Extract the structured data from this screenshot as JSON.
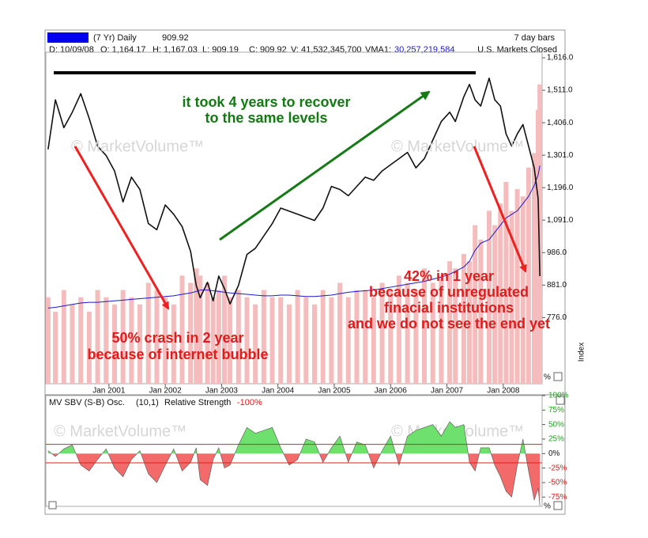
{
  "header": {
    "period": "(7 Yr) Daily",
    "last": "909.92",
    "bar_interval": "7 day bars",
    "date": "D: 10/09/08",
    "open": "O: 1,164.17",
    "high": "H: 1,167.03",
    "low": "L: 909.19",
    "close": "C: 909.92",
    "volume": "V: 41,532,345,700",
    "vma_label": "VMA1:",
    "vma_value": "30,257,219,584",
    "status": "U.S. Markets Closed"
  },
  "watermark": "© MarketVolume™",
  "percent_label": "%",
  "chart_data": [
    {
      "type": "line",
      "y_label": "Index",
      "annotations": [
        [
          "it took 4 years to recover",
          "to the same levels"
        ],
        [
          "50% crash in 2 year",
          "because of internet bubble"
        ],
        [
          "42% in 1 year",
          "because of unregulated",
          "finacial institutions",
          "and we do not see the end yet"
        ]
      ],
      "x": [
        1999.92,
        2000.05,
        2000.2,
        2000.35,
        2000.5,
        2000.65,
        2000.8,
        2000.95,
        2001.1,
        2001.25,
        2001.4,
        2001.55,
        2001.7,
        2001.85,
        2002.0,
        2002.15,
        2002.3,
        2002.45,
        2002.55,
        2002.62,
        2002.75,
        2002.85,
        2002.95,
        2003.05,
        2003.15,
        2003.3,
        2003.45,
        2003.6,
        2003.75,
        2003.9,
        2004.05,
        2004.2,
        2004.35,
        2004.5,
        2004.65,
        2004.8,
        2004.95,
        2005.1,
        2005.25,
        2005.4,
        2005.55,
        2005.7,
        2005.85,
        2006.0,
        2006.15,
        2006.3,
        2006.45,
        2006.6,
        2006.75,
        2006.9,
        2007.05,
        2007.15,
        2007.3,
        2007.4,
        2007.5,
        2007.6,
        2007.75,
        2007.85,
        2007.95,
        2008.05,
        2008.15,
        2008.25,
        2008.35,
        2008.45,
        2008.55,
        2008.62,
        2008.65
      ],
      "xlim": [
        1999.88,
        2008.69
      ],
      "xticks": [
        {
          "value": 2001,
          "label": "Jan 2001"
        },
        {
          "value": 2002,
          "label": "Jan 2002"
        },
        {
          "value": 2003,
          "label": "Jan 2003"
        },
        {
          "value": 2004,
          "label": "Jan 2004"
        },
        {
          "value": 2005,
          "label": "Jan 2005"
        },
        {
          "value": 2006,
          "label": "Jan 2006"
        },
        {
          "value": 2007,
          "label": "Jan 2007"
        },
        {
          "value": 2008,
          "label": "Jan 2008"
        }
      ],
      "ylim": [
        562,
        1634
      ],
      "yticks": [
        {
          "value": 1616,
          "label": "1,616.0"
        },
        {
          "value": 1511,
          "label": "1,511.0"
        },
        {
          "value": 1406,
          "label": "1,406.0"
        },
        {
          "value": 1301,
          "label": "1,301.0"
        },
        {
          "value": 1196,
          "label": "1,196.0"
        },
        {
          "value": 1091,
          "label": "1,091.0"
        },
        {
          "value": 986,
          "label": "986.0"
        },
        {
          "value": 881,
          "label": "881.0"
        },
        {
          "value": 776,
          "label": "776.0"
        }
      ],
      "y2lim": [
        0,
        46
      ],
      "grid": false,
      "series": [
        {
          "type": "bar",
          "axis": "y2",
          "color": "#f4bcbc",
          "values": [
            12,
            10,
            13,
            11,
            12,
            10,
            13,
            12,
            11,
            13,
            12,
            11,
            14,
            13,
            12,
            11,
            15,
            14,
            16,
            15,
            14,
            12,
            13,
            15,
            12,
            13,
            12,
            11,
            13,
            12,
            12,
            11,
            13,
            12,
            11,
            13,
            12,
            14,
            12,
            13,
            13,
            12,
            14,
            13,
            15,
            14,
            13,
            16,
            14,
            15,
            17,
            16,
            18,
            17,
            22,
            20,
            24,
            22,
            25,
            28,
            24,
            27,
            26,
            30,
            32,
            38,
            41.53
          ]
        },
        {
          "type": "line",
          "axis": "y2",
          "color": "#1a1acc",
          "values": [
            10.5,
            10.6,
            10.8,
            11,
            11.2,
            11.3,
            11.3,
            11.4,
            11.5,
            11.6,
            11.7,
            11.8,
            11.9,
            12,
            12.1,
            12.2,
            12.4,
            12.6,
            12.8,
            13,
            13,
            12.9,
            12.8,
            12.7,
            12.6,
            12.5,
            12.4,
            12.3,
            12.2,
            12.2,
            12.3,
            12.3,
            12.2,
            12.1,
            12.1,
            12.2,
            12.3,
            12.5,
            12.7,
            12.8,
            12.9,
            13,
            13.2,
            13.4,
            13.6,
            13.8,
            14,
            14.2,
            14.5,
            14.8,
            15.2,
            15.6,
            16.2,
            17,
            18.5,
            19.5,
            20,
            21,
            22,
            23,
            23.5,
            24,
            25,
            26,
            27.5,
            29,
            30.26
          ]
        },
        {
          "type": "line",
          "color": "#111111",
          "values": [
            1320,
            1480,
            1390,
            1440,
            1500,
            1420,
            1330,
            1300,
            1250,
            1150,
            1230,
            1190,
            1080,
            1060,
            1140,
            1110,
            1070,
            990,
            880,
            840,
            890,
            830,
            910,
            870,
            820,
            880,
            980,
            1000,
            1040,
            1080,
            1130,
            1120,
            1110,
            1100,
            1090,
            1130,
            1200,
            1190,
            1170,
            1200,
            1230,
            1220,
            1250,
            1270,
            1290,
            1310,
            1260,
            1290,
            1350,
            1410,
            1440,
            1410,
            1490,
            1530,
            1480,
            1460,
            1550,
            1480,
            1460,
            1370,
            1330,
            1370,
            1400,
            1330,
            1260,
            1160,
            909.92
          ]
        }
      ]
    },
    {
      "type": "area",
      "title": "MV SBV (S-B) Osc.",
      "params": "(10,1)",
      "subtitle": "Relative Strength",
      "value_label": "-100%",
      "x": [
        1999.92,
        2000.05,
        2000.2,
        2000.35,
        2000.5,
        2000.65,
        2000.8,
        2000.95,
        2001.1,
        2001.25,
        2001.4,
        2001.55,
        2001.7,
        2001.85,
        2002.0,
        2002.15,
        2002.3,
        2002.45,
        2002.55,
        2002.62,
        2002.75,
        2002.85,
        2002.95,
        2003.05,
        2003.15,
        2003.3,
        2003.45,
        2003.6,
        2003.75,
        2003.9,
        2004.05,
        2004.2,
        2004.35,
        2004.5,
        2004.65,
        2004.8,
        2004.95,
        2005.1,
        2005.25,
        2005.4,
        2005.55,
        2005.7,
        2005.85,
        2006.0,
        2006.15,
        2006.3,
        2006.45,
        2006.6,
        2006.75,
        2006.9,
        2007.05,
        2007.15,
        2007.3,
        2007.4,
        2007.5,
        2007.6,
        2007.75,
        2007.85,
        2007.95,
        2008.05,
        2008.15,
        2008.25,
        2008.35,
        2008.45,
        2008.55,
        2008.62,
        2008.65
      ],
      "xlim": [
        1999.88,
        2008.69
      ],
      "ylim": [
        -91,
        100
      ],
      "yticks": [
        {
          "value": 100,
          "label": "100%"
        },
        {
          "value": 75,
          "label": "75%"
        },
        {
          "value": 50,
          "label": "50%"
        },
        {
          "value": 25,
          "label": "25%"
        },
        {
          "value": 0,
          "label": "0%"
        },
        {
          "value": -25,
          "label": "-25%"
        },
        {
          "value": -50,
          "label": "-50%"
        },
        {
          "value": -75,
          "label": "-75%"
        }
      ],
      "reference_lines": [
        16,
        -16
      ],
      "color_up": "#6ee06e",
      "color_down": "#f26a6a",
      "values": [
        5,
        -5,
        8,
        15,
        -20,
        -30,
        -10,
        8,
        -25,
        -40,
        -10,
        5,
        -35,
        -50,
        -20,
        8,
        -30,
        -15,
        10,
        -45,
        -55,
        -10,
        10,
        -25,
        -20,
        15,
        45,
        35,
        40,
        45,
        10,
        -20,
        -10,
        25,
        20,
        -15,
        10,
        30,
        -15,
        20,
        15,
        -25,
        5,
        30,
        -20,
        30,
        40,
        45,
        50,
        30,
        55,
        45,
        50,
        -15,
        -30,
        10,
        10,
        -20,
        -40,
        -65,
        -75,
        -20,
        25,
        -30,
        -80,
        -60,
        -90
      ]
    }
  ]
}
